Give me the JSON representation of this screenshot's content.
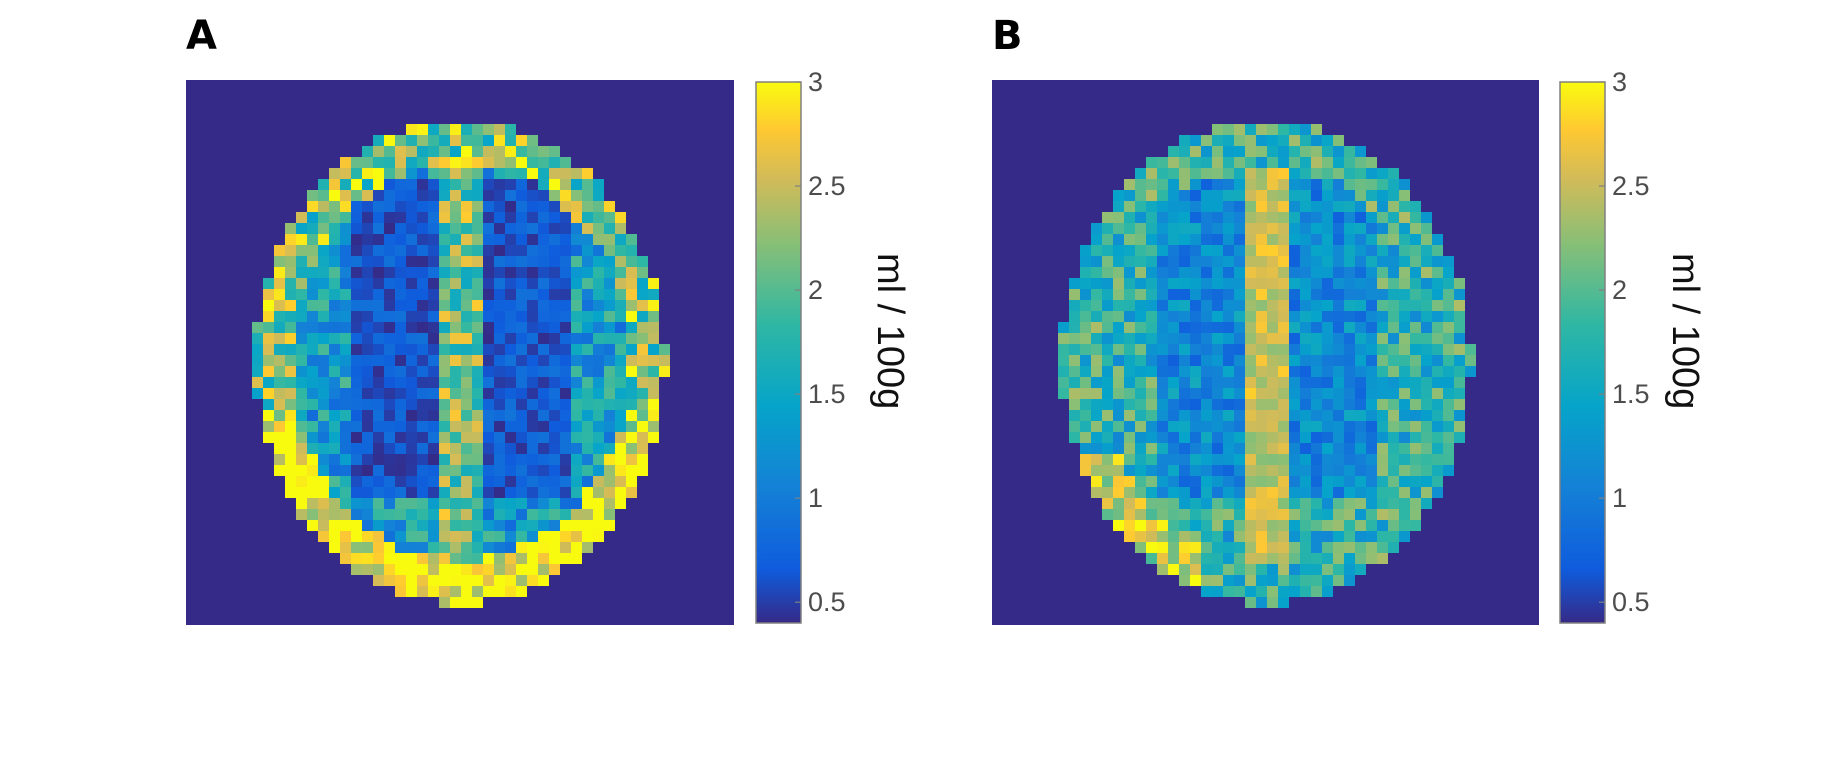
{
  "figure": {
    "panels": [
      {
        "letter": "A",
        "colorbar_label": "ml / 100g"
      },
      {
        "letter": "B",
        "colorbar_label": "ml / 100g"
      }
    ]
  },
  "chart_data": [
    {
      "type": "heatmap",
      "panel": "A",
      "colormap": "parula",
      "clim": [
        0.4,
        3.0
      ],
      "colorbar_ticks": [
        0.5,
        1,
        1.5,
        2,
        2.5,
        3
      ],
      "colorbar_tick_labels": [
        "0.5",
        "1",
        "1.5",
        "2",
        "2.5",
        "3"
      ],
      "colorbar_label": "ml / 100g",
      "background_value": 0.4,
      "colors": {
        "background": "#352a87",
        "low": "#352a87",
        "high": "#f9fb0e",
        "mid": "#33b7a0"
      }
    },
    {
      "type": "heatmap",
      "panel": "B",
      "colormap": "parula",
      "clim": [
        0.4,
        3.0
      ],
      "colorbar_ticks": [
        0.5,
        1,
        1.5,
        2,
        2.5,
        3
      ],
      "colorbar_tick_labels": [
        "0.5",
        "1",
        "1.5",
        "2",
        "2.5",
        "3"
      ],
      "colorbar_label": "ml / 100g",
      "background_value": 0.4,
      "colors": {
        "background": "#352a87",
        "low": "#352a87",
        "high": "#f9fb0e",
        "mid": "#33b7a0"
      }
    }
  ]
}
